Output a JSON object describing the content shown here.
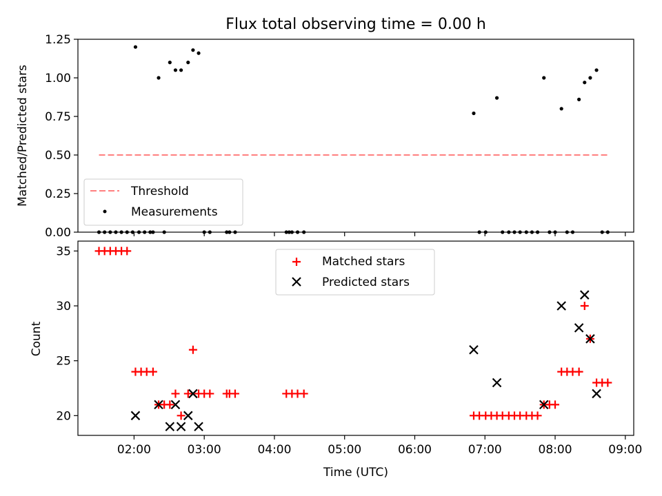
{
  "chart_data": [
    {
      "type": "scatter",
      "title": "Flux total observing time = 0.00 h",
      "xlabel": "",
      "ylabel": "Matched/Predicted stars",
      "xlim": [
        1.2,
        9.12
      ],
      "ylim": [
        0.0,
        1.25
      ],
      "yticks": [
        0.0,
        0.25,
        0.5,
        0.75,
        1.0,
        1.25
      ],
      "ytick_labels": [
        "0.00",
        "0.25",
        "0.50",
        "0.75",
        "1.00",
        "1.25"
      ],
      "xtick_hours": [
        2,
        3,
        4,
        5,
        6,
        7,
        8,
        9
      ],
      "legend": {
        "position": "lower-left",
        "entries": [
          "Threshold",
          "Measurements"
        ]
      },
      "series": [
        {
          "name": "Threshold",
          "kind": "dashed-line",
          "color": "#ff7f7f",
          "x": [
            1.5,
            8.75
          ],
          "y": [
            0.5,
            0.5
          ]
        },
        {
          "name": "Measurements",
          "kind": "dots",
          "color": "#000000",
          "x": [
            2.02,
            2.35,
            2.51,
            2.59,
            2.67,
            2.77,
            2.84,
            2.92,
            6.84,
            7.17,
            7.84,
            8.09,
            8.34,
            8.42,
            8.5,
            8.59,
            1.5,
            1.58,
            1.66,
            1.74,
            1.82,
            1.9,
            1.98,
            2.07,
            2.15,
            2.23,
            2.27,
            2.43,
            3.0,
            3.08,
            3.32,
            3.36,
            3.44,
            4.17,
            4.21,
            4.25,
            4.33,
            4.42,
            6.92,
            7.01,
            7.25,
            7.34,
            7.42,
            7.5,
            7.59,
            7.67,
            7.75,
            7.92,
            8.0,
            8.17,
            8.25,
            8.67,
            8.75
          ],
          "y": [
            1.2,
            1.0,
            1.1,
            1.05,
            1.05,
            1.1,
            1.18,
            1.16,
            0.77,
            0.87,
            1.0,
            0.8,
            0.86,
            0.97,
            1.0,
            1.05,
            0,
            0,
            0,
            0,
            0,
            0,
            0,
            0,
            0,
            0,
            0,
            0,
            0,
            0,
            0,
            0,
            0,
            0,
            0,
            0,
            0,
            0,
            0,
            0,
            0,
            0,
            0,
            0,
            0,
            0,
            0,
            0,
            0,
            0,
            0,
            0,
            0
          ]
        }
      ]
    },
    {
      "type": "scatter",
      "title": "",
      "xlabel": "Time (UTC)",
      "ylabel": "Count",
      "xlim": [
        1.2,
        9.12
      ],
      "ylim": [
        18.2,
        35.9
      ],
      "yticks": [
        20,
        25,
        30,
        35
      ],
      "ytick_labels": [
        "20",
        "25",
        "30",
        "35"
      ],
      "xtick_hours": [
        2,
        3,
        4,
        5,
        6,
        7,
        8,
        9
      ],
      "xtick_labels": [
        "02:00",
        "03:00",
        "04:00",
        "05:00",
        "06:00",
        "07:00",
        "08:00",
        "09:00"
      ],
      "legend": {
        "position": "upper-center",
        "entries": [
          "Matched stars",
          "Predicted stars"
        ]
      },
      "series": [
        {
          "name": "Matched stars",
          "marker": "+",
          "color": "#ff0000",
          "x": [
            1.5,
            1.58,
            1.66,
            1.74,
            1.82,
            1.9,
            2.02,
            2.1,
            2.18,
            2.27,
            2.35,
            2.43,
            2.51,
            2.59,
            2.67,
            2.77,
            2.84,
            2.92,
            3.0,
            3.08,
            3.32,
            3.36,
            3.44,
            4.17,
            4.25,
            4.33,
            4.42,
            6.84,
            6.92,
            7.01,
            7.09,
            7.17,
            7.25,
            7.34,
            7.42,
            7.5,
            7.59,
            7.67,
            7.75,
            7.84,
            7.92,
            8.0,
            8.09,
            8.17,
            8.25,
            8.34,
            8.42,
            8.5,
            8.59,
            8.67,
            8.75
          ],
          "y": [
            35,
            35,
            35,
            35,
            35,
            35,
            24,
            24,
            24,
            24,
            21,
            21,
            21,
            22,
            20,
            22,
            26,
            22,
            22,
            22,
            22,
            22,
            22,
            22,
            22,
            22,
            22,
            20,
            20,
            20,
            20,
            20,
            20,
            20,
            20,
            20,
            20,
            20,
            20,
            21,
            21,
            21,
            24,
            24,
            24,
            24,
            30,
            27,
            23,
            23,
            23
          ]
        },
        {
          "name": "Predicted stars",
          "marker": "x",
          "color": "#000000",
          "x": [
            2.02,
            2.35,
            2.51,
            2.59,
            2.67,
            2.77,
            2.84,
            2.92,
            6.84,
            7.17,
            7.84,
            8.09,
            8.34,
            8.42,
            8.5,
            8.59
          ],
          "y": [
            20,
            21,
            19,
            21,
            19,
            20,
            22,
            19,
            26,
            23,
            21,
            30,
            28,
            31,
            27,
            22
          ]
        }
      ]
    }
  ]
}
